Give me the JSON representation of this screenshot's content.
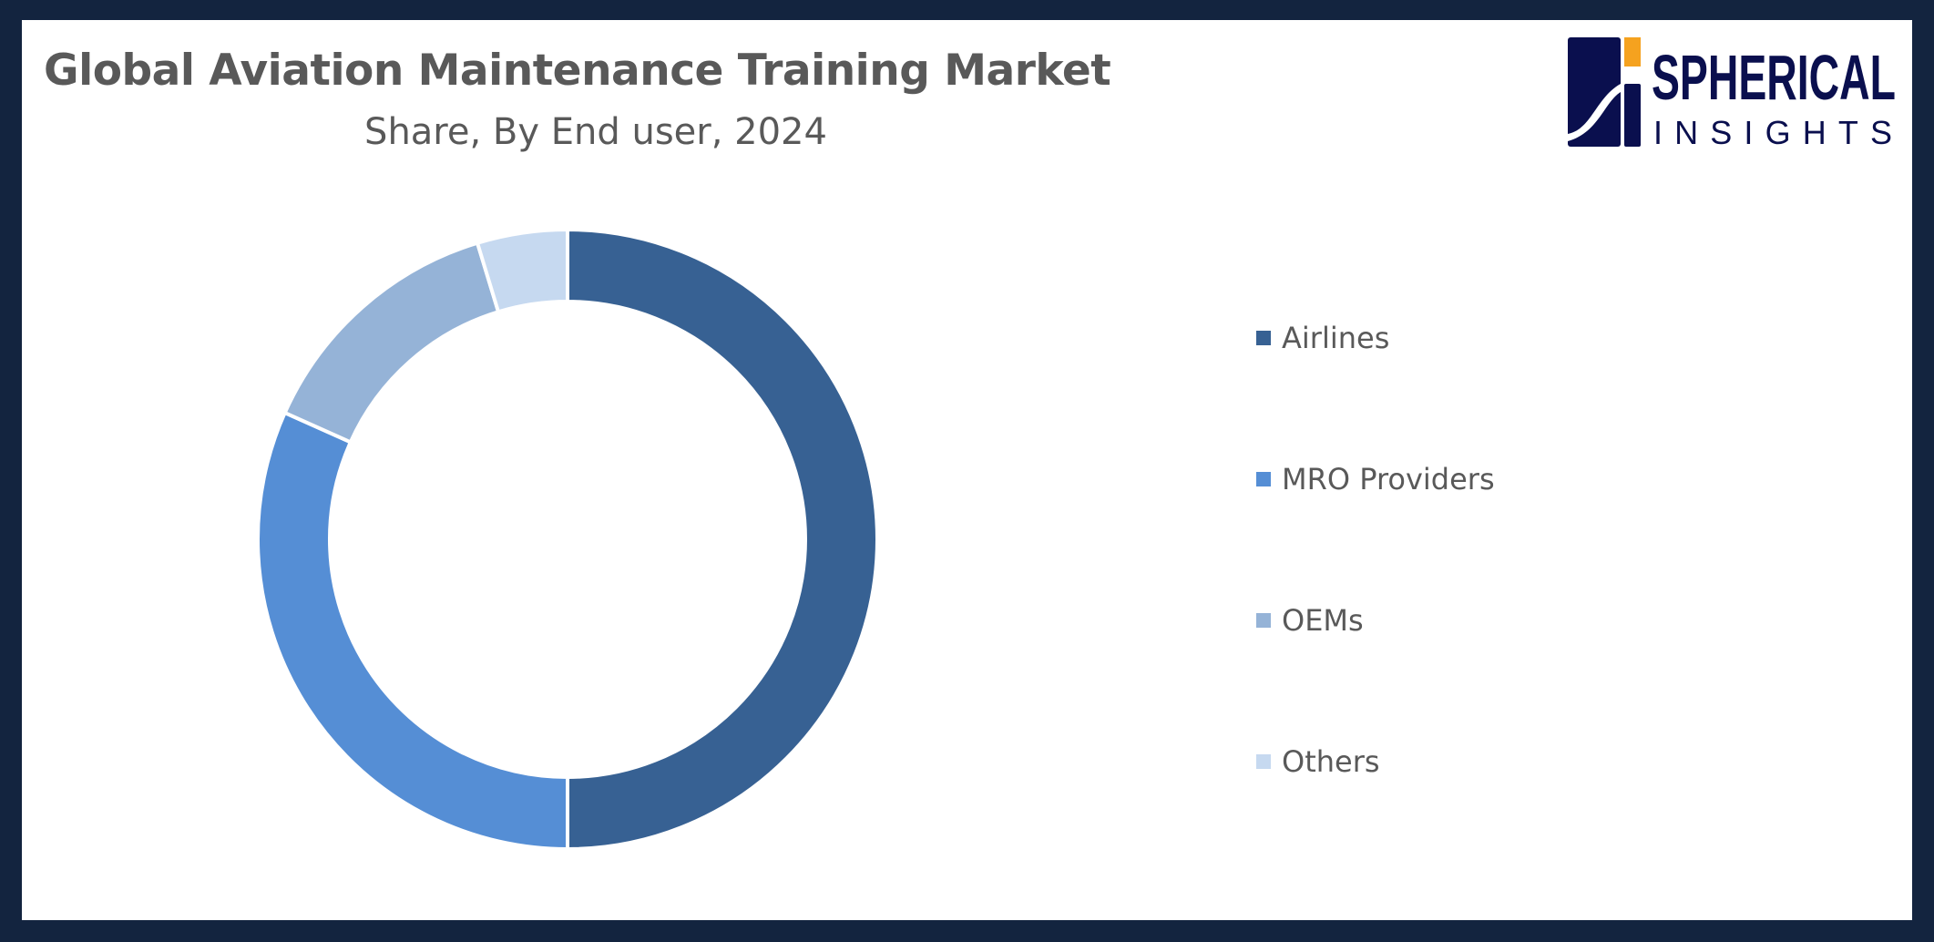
{
  "chart_data": {
    "type": "pie",
    "variant": "donut",
    "title": "Global Aviation Maintenance Training Market",
    "subtitle": "Share, By End user, 2024",
    "categories": [
      "Airlines",
      "MRO Providers",
      "OEMs",
      "Others"
    ],
    "values": [
      50,
      31.7,
      13.6,
      4.7
    ],
    "colors": [
      "#376193",
      "#558ed5",
      "#95b3d7",
      "#c6d9f0"
    ],
    "legend_position": "right"
  },
  "logo": {
    "line1": "SPHERICAL",
    "line2": "INSIGHTS",
    "colors": {
      "navy": "#0a0f4e",
      "orange": "#f5a21f"
    }
  },
  "frame_color": "#13243f"
}
